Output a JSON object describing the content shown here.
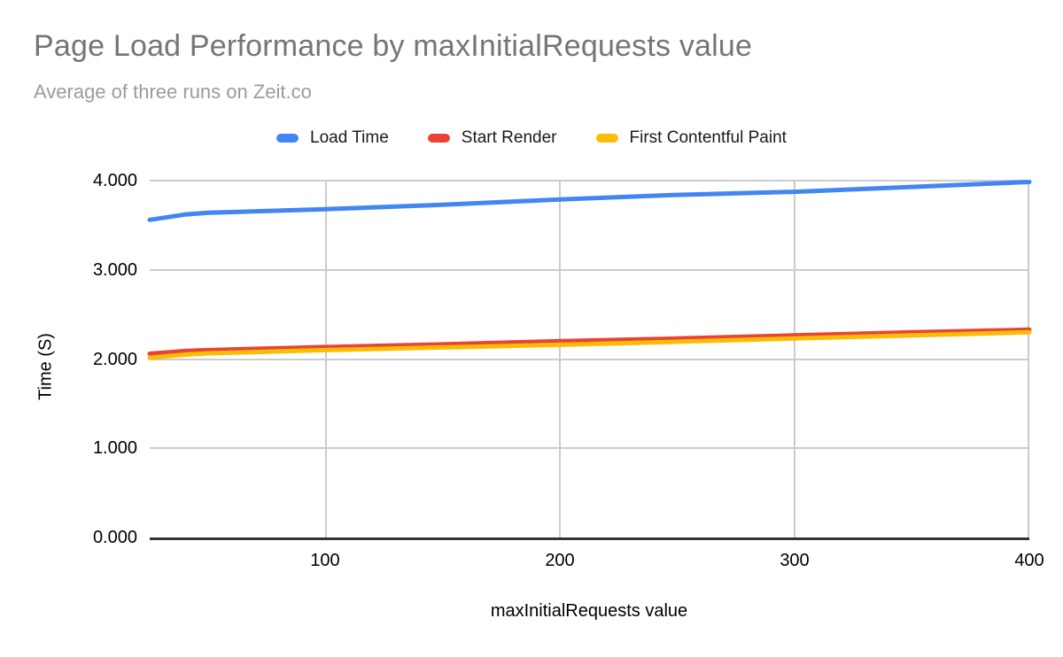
{
  "chart_data": {
    "type": "line",
    "title": "Page Load Performance by maxInitialRequests value",
    "subtitle": "Average of three runs on Zeit.co",
    "xlabel": "maxInitialRequests value",
    "ylabel": "Time (S)",
    "xlim": [
      25,
      400
    ],
    "ylim": [
      0,
      4
    ],
    "grid": true,
    "legend_position": "top",
    "xtick_labels": [
      "100",
      "200",
      "300",
      "400"
    ],
    "ytick_labels": [
      "4.000",
      "3.000",
      "2.000",
      "1.000",
      "0.000"
    ],
    "x": [
      25,
      40,
      50,
      100,
      150,
      200,
      250,
      300,
      350,
      400
    ],
    "series": [
      {
        "name": "Load Time",
        "color": "#4285F4",
        "values": [
          3.56,
          3.62,
          3.64,
          3.68,
          3.73,
          3.79,
          3.84,
          3.875,
          3.93,
          3.985
        ]
      },
      {
        "name": "Start Render",
        "color": "#EA4335",
        "values": [
          2.06,
          2.09,
          2.1,
          2.135,
          2.165,
          2.2,
          2.23,
          2.265,
          2.3,
          2.33
        ]
      },
      {
        "name": "First Contentful Paint",
        "color": "#FBBC04",
        "values": [
          2.015,
          2.05,
          2.065,
          2.1,
          2.13,
          2.16,
          2.195,
          2.23,
          2.265,
          2.3
        ]
      }
    ],
    "axis_colors": {
      "gridline": "#cccccc",
      "axis_line": "#333333",
      "tick_text": "#000000"
    },
    "title_color": "#757575",
    "subtitle_color": "#9b9b9b"
  }
}
